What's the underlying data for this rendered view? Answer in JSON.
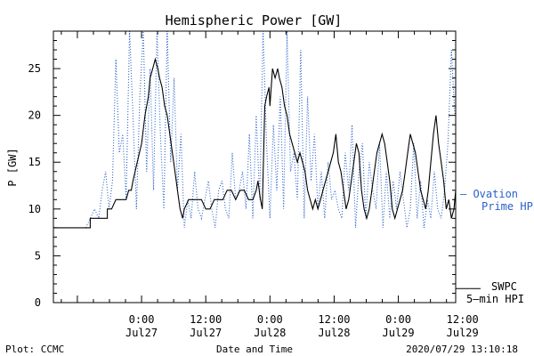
{
  "chart_data": {
    "type": "line",
    "title": "Hemispheric Power [GW]",
    "ylabel": "P [GW]",
    "xlabel": "Date and Time",
    "ylim": [
      0,
      29
    ],
    "yticks": [
      0,
      5,
      10,
      15,
      20,
      25
    ],
    "xlim": [
      -10.3,
      36.7
    ],
    "xticks": [
      {
        "x": 0,
        "time": "0:00",
        "date": "Jul27"
      },
      {
        "x": 7.5,
        "time": "12:00",
        "date": "Jul27"
      },
      {
        "x": 15.0,
        "time": "0:00",
        "date": "Jul28"
      },
      {
        "x": 22.5,
        "time": "12:00",
        "date": "Jul28"
      },
      {
        "x": 30.0,
        "time": "0:00",
        "date": "Jul29"
      },
      {
        "x": 37.5,
        "time": "12:00",
        "date": "Jul29"
      }
    ],
    "series": [
      {
        "name": "SWPC 5-min HPI",
        "label_lines": [
          "SWPC",
          "5–min HPI"
        ],
        "color": "#000000",
        "style": "solid",
        "x": [
          -10.3,
          -6.0,
          -6.0,
          -4.0,
          -4.0,
          -3.5,
          -3.0,
          -2.5,
          -2.0,
          -1.8,
          -1.5,
          -1.2,
          -1.0,
          -0.5,
          0.0,
          0.4,
          0.8,
          1.0,
          1.3,
          1.6,
          1.9,
          2.1,
          2.4,
          2.7,
          3.0,
          3.3,
          3.6,
          3.9,
          4.2,
          4.5,
          4.8,
          5.0,
          5.5,
          6.0,
          6.4,
          7.0,
          7.5,
          8.0,
          8.5,
          9.0,
          9.5,
          10.0,
          10.5,
          11.0,
          11.5,
          12.0,
          12.5,
          13.0,
          13.4,
          13.6,
          13.9,
          14.1,
          14.4,
          14.6,
          14.9,
          15.0,
          15.3,
          15.6,
          15.9,
          16.1,
          16.4,
          16.7,
          17.0,
          17.3,
          17.6,
          17.9,
          18.2,
          18.5,
          18.8,
          19.1,
          19.4,
          19.7,
          20.0,
          20.3,
          20.6,
          20.9,
          21.2,
          21.5,
          21.8,
          22.1,
          22.4,
          22.7,
          23.0,
          23.3,
          23.6,
          23.9,
          24.2,
          24.5,
          24.8,
          25.1,
          25.4,
          25.7,
          26.0,
          26.3,
          26.6,
          26.9,
          27.2,
          27.5,
          27.8,
          28.1,
          28.4,
          28.7,
          29.0,
          29.3,
          29.6,
          29.9,
          30.2,
          30.5,
          30.8,
          31.1,
          31.4,
          31.7,
          32.0,
          32.3,
          32.6,
          32.9,
          33.2,
          33.5,
          33.8,
          34.1,
          34.4,
          34.7,
          35.0,
          35.3,
          35.6,
          35.9,
          36.2,
          36.5,
          36.7
        ],
        "y": [
          8,
          8,
          9,
          9,
          10,
          10,
          11,
          11,
          11,
          11,
          12,
          12,
          13,
          15,
          17,
          20,
          22,
          24,
          25,
          26,
          25,
          24,
          23,
          21,
          20,
          18,
          16,
          14,
          12,
          10,
          9,
          10,
          11,
          11,
          11,
          11,
          10,
          10,
          11,
          11,
          11,
          12,
          12,
          11,
          12,
          12,
          11,
          11,
          12,
          13,
          11,
          10,
          21,
          22,
          23,
          21,
          25,
          24,
          25,
          24,
          23,
          21,
          20,
          18,
          17,
          16,
          15,
          16,
          15,
          14,
          12,
          11,
          10,
          11,
          10,
          11,
          12,
          13,
          14,
          15,
          16,
          18,
          15,
          14,
          12,
          10,
          11,
          13,
          15,
          17,
          16,
          12,
          10,
          9,
          10,
          12,
          14,
          16,
          17,
          18,
          17,
          15,
          13,
          10,
          9,
          10,
          11,
          12,
          14,
          16,
          18,
          17,
          16,
          14,
          12,
          11,
          10,
          12,
          15,
          18,
          20,
          17,
          15,
          13,
          10,
          11,
          9,
          10,
          12
        ],
        "label_value": 1.5
      },
      {
        "name": "Ovation Prime HPI",
        "label_lines": [
          "— Ovation",
          "Prime HPI"
        ],
        "color": "#2a62c8",
        "style": "dotted",
        "x": [
          -6.5,
          -6.0,
          -5.5,
          -5.0,
          -4.6,
          -4.2,
          -3.8,
          -3.4,
          -3.0,
          -2.6,
          -2.2,
          -1.8,
          -1.4,
          -1.0,
          -0.6,
          -0.2,
          0.2,
          0.6,
          1.0,
          1.4,
          1.8,
          2.2,
          2.6,
          3.0,
          3.4,
          3.8,
          4.2,
          4.6,
          5.0,
          5.4,
          5.8,
          6.2,
          6.6,
          7.0,
          7.4,
          7.8,
          8.2,
          8.6,
          9.0,
          9.4,
          9.8,
          10.2,
          10.6,
          11.0,
          11.4,
          11.8,
          12.2,
          12.6,
          13.0,
          13.4,
          13.8,
          14.2,
          14.6,
          15.0,
          15.4,
          15.8,
          16.2,
          16.6,
          17.0,
          17.4,
          17.8,
          18.2,
          18.6,
          19.0,
          19.4,
          19.8,
          20.2,
          20.6,
          21.0,
          21.4,
          21.8,
          22.2,
          22.6,
          23.0,
          23.4,
          23.8,
          24.2,
          24.6,
          25.0,
          25.4,
          25.8,
          26.2,
          26.6,
          27.0,
          27.4,
          27.8,
          28.2,
          28.6,
          29.0,
          29.4,
          29.8,
          30.2,
          30.6,
          31.0,
          31.4,
          31.8,
          32.2,
          32.6,
          33.0,
          33.4,
          33.8,
          34.2,
          34.6,
          35.0,
          35.4,
          35.8,
          36.2,
          36.6
        ],
        "y": [
          8,
          9,
          10,
          9,
          12,
          14,
          10,
          13,
          26,
          16,
          18,
          11,
          29,
          20,
          10,
          22,
          29,
          14,
          25,
          12,
          29,
          18,
          10,
          29,
          15,
          24,
          12,
          18,
          8,
          11,
          9,
          14,
          10,
          9,
          11,
          13,
          10,
          8,
          12,
          13,
          10,
          9,
          16,
          11,
          12,
          14,
          10,
          18,
          9,
          20,
          11,
          29,
          17,
          9,
          19,
          12,
          22,
          10,
          29,
          14,
          16,
          11,
          27,
          9,
          22,
          13,
          18,
          10,
          14,
          9,
          15,
          11,
          12,
          10,
          9,
          16,
          12,
          19,
          8,
          14,
          17,
          9,
          15,
          12,
          10,
          17,
          8,
          14,
          9,
          13,
          10,
          14,
          11,
          8,
          10,
          17,
          9,
          13,
          8,
          11,
          9,
          14,
          10,
          9,
          12,
          17,
          27,
          20
        ],
        "label_value": 11.8
      }
    ]
  },
  "footer": {
    "left": "Plot: CCMC",
    "center": "Date and Time",
    "right": "2020/07/29 13:10:18"
  }
}
